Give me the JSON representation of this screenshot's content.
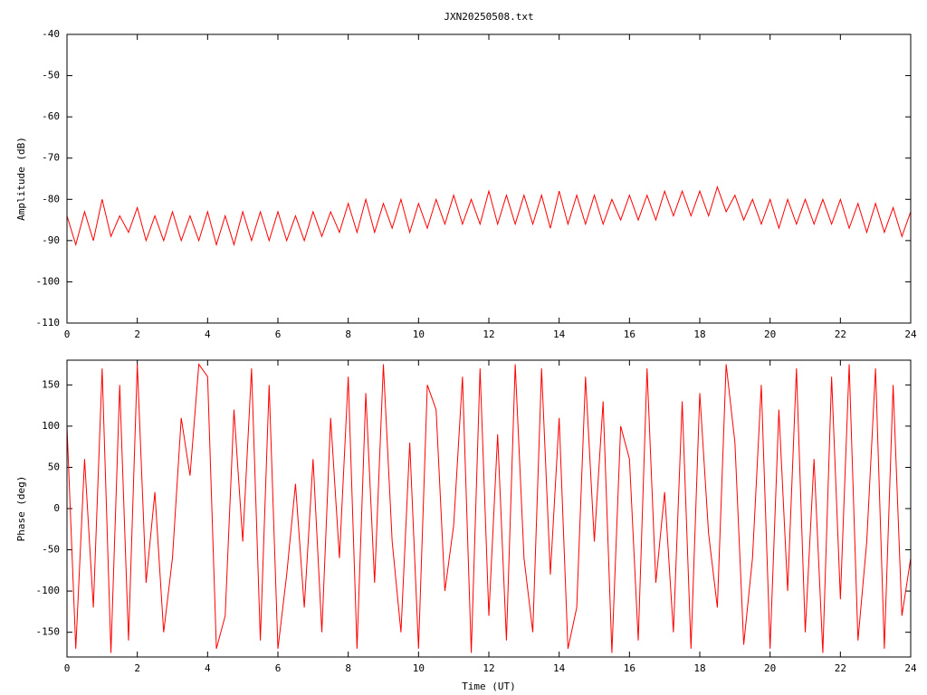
{
  "chart_data": [
    {
      "type": "line",
      "title": "JXN20250508.txt",
      "y_label": "Amplitude (dB)",
      "color": "#ff0000",
      "grid": false,
      "xlim": [
        0,
        24
      ],
      "xticks": [
        0,
        2,
        4,
        6,
        8,
        10,
        12,
        14,
        16,
        18,
        20,
        22,
        24
      ],
      "ylim": [
        -110,
        -40
      ],
      "yticks": [
        -110,
        -100,
        -90,
        -80,
        -70,
        -60,
        -50,
        -40
      ],
      "x": [
        0,
        0.25,
        0.5,
        0.75,
        1,
        1.25,
        1.5,
        1.75,
        2,
        2.25,
        2.5,
        2.75,
        3,
        3.25,
        3.5,
        3.75,
        4,
        4.25,
        4.5,
        4.75,
        5,
        5.25,
        5.5,
        5.75,
        6,
        6.25,
        6.5,
        6.75,
        7,
        7.25,
        7.5,
        7.75,
        8,
        8.25,
        8.5,
        8.75,
        9,
        9.25,
        9.5,
        9.75,
        10,
        10.25,
        10.5,
        10.75,
        11,
        11.25,
        11.5,
        11.75,
        12,
        12.25,
        12.5,
        12.75,
        13,
        13.25,
        13.5,
        13.75,
        14,
        14.25,
        14.5,
        14.75,
        15,
        15.25,
        15.5,
        15.75,
        16,
        16.25,
        16.5,
        16.75,
        17,
        17.25,
        17.5,
        17.75,
        18,
        18.25,
        18.5,
        18.75,
        19,
        19.25,
        19.5,
        19.75,
        20,
        20.25,
        20.5,
        20.75,
        21,
        21.25,
        21.5,
        21.75,
        22,
        22.25,
        22.5,
        22.75,
        23,
        23.25,
        23.5,
        23.75,
        24
      ],
      "values": [
        -84,
        -91,
        -83,
        -90,
        -80,
        -89,
        -84,
        -88,
        -82,
        -90,
        -84,
        -90,
        -83,
        -90,
        -84,
        -90,
        -83,
        -91,
        -84,
        -91,
        -83,
        -90,
        -83,
        -90,
        -83,
        -90,
        -84,
        -90,
        -83,
        -89,
        -83,
        -88,
        -81,
        -88,
        -80,
        -88,
        -81,
        -87,
        -80,
        -88,
        -81,
        -87,
        -80,
        -86,
        -79,
        -86,
        -80,
        -86,
        -78,
        -86,
        -79,
        -86,
        -79,
        -86,
        -79,
        -87,
        -78,
        -86,
        -79,
        -86,
        -79,
        -86,
        -80,
        -85,
        -79,
        -85,
        -79,
        -85,
        -78,
        -84,
        -78,
        -84,
        -78,
        -84,
        -77,
        -83,
        -79,
        -85,
        -80,
        -86,
        -80,
        -87,
        -80,
        -86,
        -80,
        -86,
        -80,
        -86,
        -80,
        -87,
        -81,
        -88,
        -81,
        -88,
        -82,
        -89,
        -83
      ]
    },
    {
      "type": "line",
      "x_label": "Time (UT)",
      "y_label": "Phase (deg)",
      "color": "#ff0000",
      "grid": false,
      "xlim": [
        0,
        24
      ],
      "xticks": [
        0,
        2,
        4,
        6,
        8,
        10,
        12,
        14,
        16,
        18,
        20,
        22,
        24
      ],
      "ylim": [
        -180,
        180
      ],
      "yticks": [
        -150,
        -100,
        -50,
        0,
        50,
        100,
        150
      ],
      "x": [
        0,
        0.25,
        0.5,
        0.75,
        1,
        1.25,
        1.5,
        1.75,
        2,
        2.25,
        2.5,
        2.75,
        3,
        3.25,
        3.5,
        3.75,
        4,
        4.25,
        4.5,
        4.75,
        5,
        5.25,
        5.5,
        5.75,
        6,
        6.25,
        6.5,
        6.75,
        7,
        7.25,
        7.5,
        7.75,
        8,
        8.25,
        8.5,
        8.75,
        9,
        9.25,
        9.5,
        9.75,
        10,
        10.25,
        10.5,
        10.75,
        11,
        11.25,
        11.5,
        11.75,
        12,
        12.25,
        12.5,
        12.75,
        13,
        13.25,
        13.5,
        13.75,
        14,
        14.25,
        14.5,
        14.75,
        15,
        15.25,
        15.5,
        15.75,
        16,
        16.25,
        16.5,
        16.75,
        17,
        17.25,
        17.5,
        17.75,
        18,
        18.25,
        18.5,
        18.75,
        19,
        19.25,
        19.5,
        19.75,
        20,
        20.25,
        20.5,
        20.75,
        21,
        21.25,
        21.5,
        21.75,
        22,
        22.25,
        22.5,
        22.75,
        23,
        23.25,
        23.5,
        23.75,
        24
      ],
      "values": [
        100,
        -170,
        60,
        -120,
        170,
        -175,
        150,
        -160,
        175,
        -90,
        20,
        -150,
        -60,
        110,
        40,
        175,
        160,
        -170,
        -130,
        120,
        -40,
        170,
        -160,
        150,
        -170,
        -80,
        30,
        -120,
        60,
        -150,
        110,
        -60,
        160,
        -170,
        140,
        -90,
        175,
        -40,
        -150,
        80,
        -170,
        150,
        120,
        -100,
        -20,
        160,
        -175,
        170,
        -130,
        90,
        -160,
        175,
        -60,
        -150,
        170,
        -80,
        110,
        -170,
        -120,
        160,
        -40,
        130,
        -175,
        100,
        60,
        -160,
        170,
        -90,
        20,
        -150,
        130,
        -170,
        140,
        -30,
        -120,
        175,
        80,
        -165,
        -60,
        150,
        -170,
        120,
        -100,
        170,
        -150,
        60,
        -175,
        160,
        -110,
        175,
        -160,
        -40,
        170,
        -170,
        150,
        -130,
        -60
      ]
    }
  ]
}
